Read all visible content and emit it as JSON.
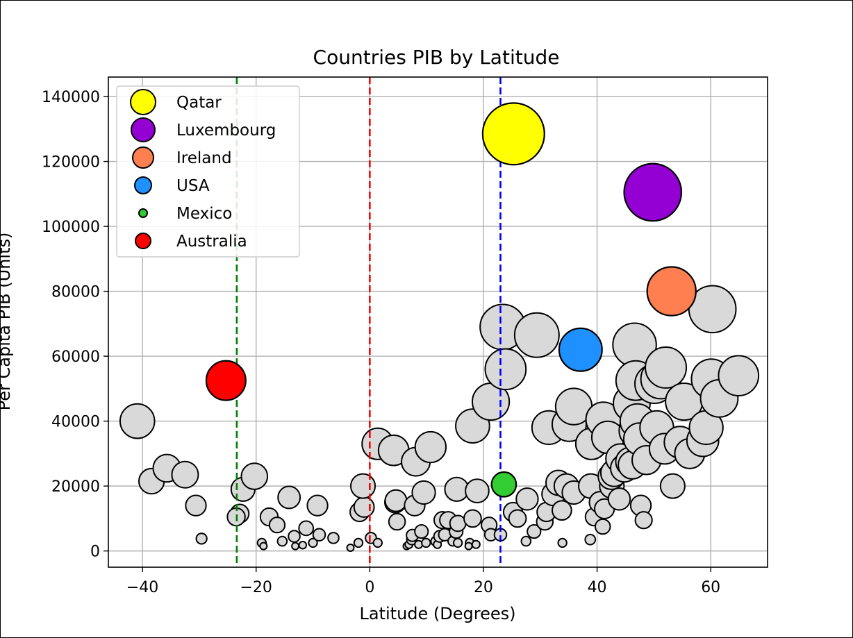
{
  "chart_data": {
    "type": "scatter",
    "title": "Countries PIB by Latitude",
    "xlabel": "Latitude (Degrees)",
    "ylabel": "Per Capita PIB (Units)",
    "xlim": [
      -46,
      70
    ],
    "ylim": [
      -5000,
      146000
    ],
    "xticks": [
      -40,
      -20,
      0,
      20,
      40,
      60
    ],
    "yticks": [
      0,
      20000,
      40000,
      60000,
      80000,
      100000,
      120000,
      140000
    ],
    "grid": true,
    "legend_position": "top-left",
    "vertical_lines": [
      {
        "x": -23.4,
        "color": "#008000",
        "style": "dashed"
      },
      {
        "x": 0,
        "color": "#ff0000",
        "style": "dashed"
      },
      {
        "x": 23.0,
        "color": "#0000ff",
        "style": "dashed"
      }
    ],
    "highlighted": [
      {
        "name": "Qatar",
        "x": 25.3,
        "y": 128500,
        "color": "#ffff00"
      },
      {
        "name": "Luxembourg",
        "x": 49.8,
        "y": 110500,
        "color": "#9400d3"
      },
      {
        "name": "Ireland",
        "x": 53.1,
        "y": 80000,
        "color": "#ff7f50"
      },
      {
        "name": "USA",
        "x": 37.1,
        "y": 62000,
        "color": "#1e90ff"
      },
      {
        "name": "Mexico",
        "x": 23.6,
        "y": 20500,
        "color": "#32cd32"
      },
      {
        "name": "Australia",
        "x": -25.3,
        "y": 52500,
        "color": "#ff0000"
      }
    ],
    "others_color": "#d9d9d9",
    "others": [
      {
        "x": -40.9,
        "y": 40000
      },
      {
        "x": -38.4,
        "y": 21500
      },
      {
        "x": -35.7,
        "y": 25500
      },
      {
        "x": -32.5,
        "y": 23500
      },
      {
        "x": -30.6,
        "y": 14000
      },
      {
        "x": -29.6,
        "y": 3800
      },
      {
        "x": -22.3,
        "y": 19000
      },
      {
        "x": -22.9,
        "y": 11500
      },
      {
        "x": -23.5,
        "y": 10500
      },
      {
        "x": -20.3,
        "y": 23000
      },
      {
        "x": -19.0,
        "y": 2500
      },
      {
        "x": -18.7,
        "y": 1500
      },
      {
        "x": -17.7,
        "y": 10500
      },
      {
        "x": -16.3,
        "y": 8000
      },
      {
        "x": -15.4,
        "y": 3000
      },
      {
        "x": -14.2,
        "y": 16500
      },
      {
        "x": -13.3,
        "y": 4500
      },
      {
        "x": -13.1,
        "y": 1500
      },
      {
        "x": -11.8,
        "y": 1800
      },
      {
        "x": -11.2,
        "y": 7000
      },
      {
        "x": -10.0,
        "y": 2500
      },
      {
        "x": -9.2,
        "y": 14000
      },
      {
        "x": -8.9,
        "y": 5000
      },
      {
        "x": -6.4,
        "y": 4000
      },
      {
        "x": -3.4,
        "y": 1000
      },
      {
        "x": -2.0,
        "y": 2500
      },
      {
        "x": -1.8,
        "y": 12000
      },
      {
        "x": -1.0,
        "y": 13500
      },
      {
        "x": -1.2,
        "y": 20000
      },
      {
        "x": 0.2,
        "y": 4000
      },
      {
        "x": 1.4,
        "y": 2500
      },
      {
        "x": 1.4,
        "y": 33000
      },
      {
        "x": 4.2,
        "y": 31000
      },
      {
        "x": 4.5,
        "y": 15000
      },
      {
        "x": 4.6,
        "y": 15500
      },
      {
        "x": 4.8,
        "y": 9000
      },
      {
        "x": 6.5,
        "y": 1500
      },
      {
        "x": 6.9,
        "y": 2000
      },
      {
        "x": 7.4,
        "y": 3500
      },
      {
        "x": 7.9,
        "y": 14000
      },
      {
        "x": 7.5,
        "y": 4800
      },
      {
        "x": 8.1,
        "y": 27500
      },
      {
        "x": 8.6,
        "y": 2000
      },
      {
        "x": 9.1,
        "y": 6000
      },
      {
        "x": 9.5,
        "y": 18000
      },
      {
        "x": 9.9,
        "y": 2500
      },
      {
        "x": 10.7,
        "y": 32000
      },
      {
        "x": 11.6,
        "y": 3000
      },
      {
        "x": 11.9,
        "y": 2000
      },
      {
        "x": 12.3,
        "y": 4500
      },
      {
        "x": 12.8,
        "y": 9500
      },
      {
        "x": 13.2,
        "y": 5000
      },
      {
        "x": 13.8,
        "y": 9500
      },
      {
        "x": 14.6,
        "y": 3000
      },
      {
        "x": 15.2,
        "y": 6000
      },
      {
        "x": 15.5,
        "y": 8500
      },
      {
        "x": 15.3,
        "y": 19000
      },
      {
        "x": 15.5,
        "y": 2500
      },
      {
        "x": 17.6,
        "y": 2500
      },
      {
        "x": 17.4,
        "y": 1500
      },
      {
        "x": 18.1,
        "y": 10000
      },
      {
        "x": 18.7,
        "y": 2000
      },
      {
        "x": 18.9,
        "y": 18500
      },
      {
        "x": 18.1,
        "y": 38500
      },
      {
        "x": 21.0,
        "y": 8000
      },
      {
        "x": 21.3,
        "y": 5000
      },
      {
        "x": 21.3,
        "y": 46000
      },
      {
        "x": 23.0,
        "y": 5000
      },
      {
        "x": 23.4,
        "y": 69000
      },
      {
        "x": 23.9,
        "y": 56000
      },
      {
        "x": 25.2,
        "y": 12000
      },
      {
        "x": 26.0,
        "y": 10000
      },
      {
        "x": 27.5,
        "y": 3000
      },
      {
        "x": 27.7,
        "y": 16000
      },
      {
        "x": 28.9,
        "y": 6000
      },
      {
        "x": 29.4,
        "y": 66500
      },
      {
        "x": 30.8,
        "y": 9000
      },
      {
        "x": 31.1,
        "y": 12000
      },
      {
        "x": 31.5,
        "y": 38000
      },
      {
        "x": 32.3,
        "y": 17500
      },
      {
        "x": 33.2,
        "y": 21000
      },
      {
        "x": 33.8,
        "y": 12500
      },
      {
        "x": 33.9,
        "y": 2500
      },
      {
        "x": 34.6,
        "y": 20000
      },
      {
        "x": 35.1,
        "y": 39000
      },
      {
        "x": 35.9,
        "y": 18000
      },
      {
        "x": 35.9,
        "y": 44500
      },
      {
        "x": 38.8,
        "y": 3500
      },
      {
        "x": 38.9,
        "y": 20000
      },
      {
        "x": 39.0,
        "y": 33000
      },
      {
        "x": 39.5,
        "y": 10500
      },
      {
        "x": 41.0,
        "y": 7500
      },
      {
        "x": 40.5,
        "y": 15000
      },
      {
        "x": 41.1,
        "y": 40500
      },
      {
        "x": 41.3,
        "y": 13000
      },
      {
        "x": 41.9,
        "y": 35000
      },
      {
        "x": 42.6,
        "y": 20000
      },
      {
        "x": 42.5,
        "y": 23000
      },
      {
        "x": 43.0,
        "y": 24000
      },
      {
        "x": 43.9,
        "y": 16000
      },
      {
        "x": 44.1,
        "y": 28500
      },
      {
        "x": 44.8,
        "y": 25500
      },
      {
        "x": 45.8,
        "y": 27500
      },
      {
        "x": 46.1,
        "y": 45500
      },
      {
        "x": 46.6,
        "y": 63500
      },
      {
        "x": 46.8,
        "y": 52500
      },
      {
        "x": 46.2,
        "y": 26500
      },
      {
        "x": 46.8,
        "y": 37000
      },
      {
        "x": 47.1,
        "y": 40000
      },
      {
        "x": 47.5,
        "y": 34500
      },
      {
        "x": 47.7,
        "y": 14000
      },
      {
        "x": 48.2,
        "y": 9500
      },
      {
        "x": 48.7,
        "y": 28000
      },
      {
        "x": 50.5,
        "y": 38000
      },
      {
        "x": 50.1,
        "y": 51500
      },
      {
        "x": 51.2,
        "y": 53000
      },
      {
        "x": 51.9,
        "y": 31500
      },
      {
        "x": 52.1,
        "y": 56500
      },
      {
        "x": 53.3,
        "y": 20000
      },
      {
        "x": 54.6,
        "y": 33500
      },
      {
        "x": 55.3,
        "y": 46000
      },
      {
        "x": 56.3,
        "y": 30000
      },
      {
        "x": 58.6,
        "y": 34000
      },
      {
        "x": 59.2,
        "y": 38000
      },
      {
        "x": 60.1,
        "y": 53000
      },
      {
        "x": 60.3,
        "y": 74500
      },
      {
        "x": 61.5,
        "y": 47000
      },
      {
        "x": 64.9,
        "y": 54000
      }
    ]
  }
}
